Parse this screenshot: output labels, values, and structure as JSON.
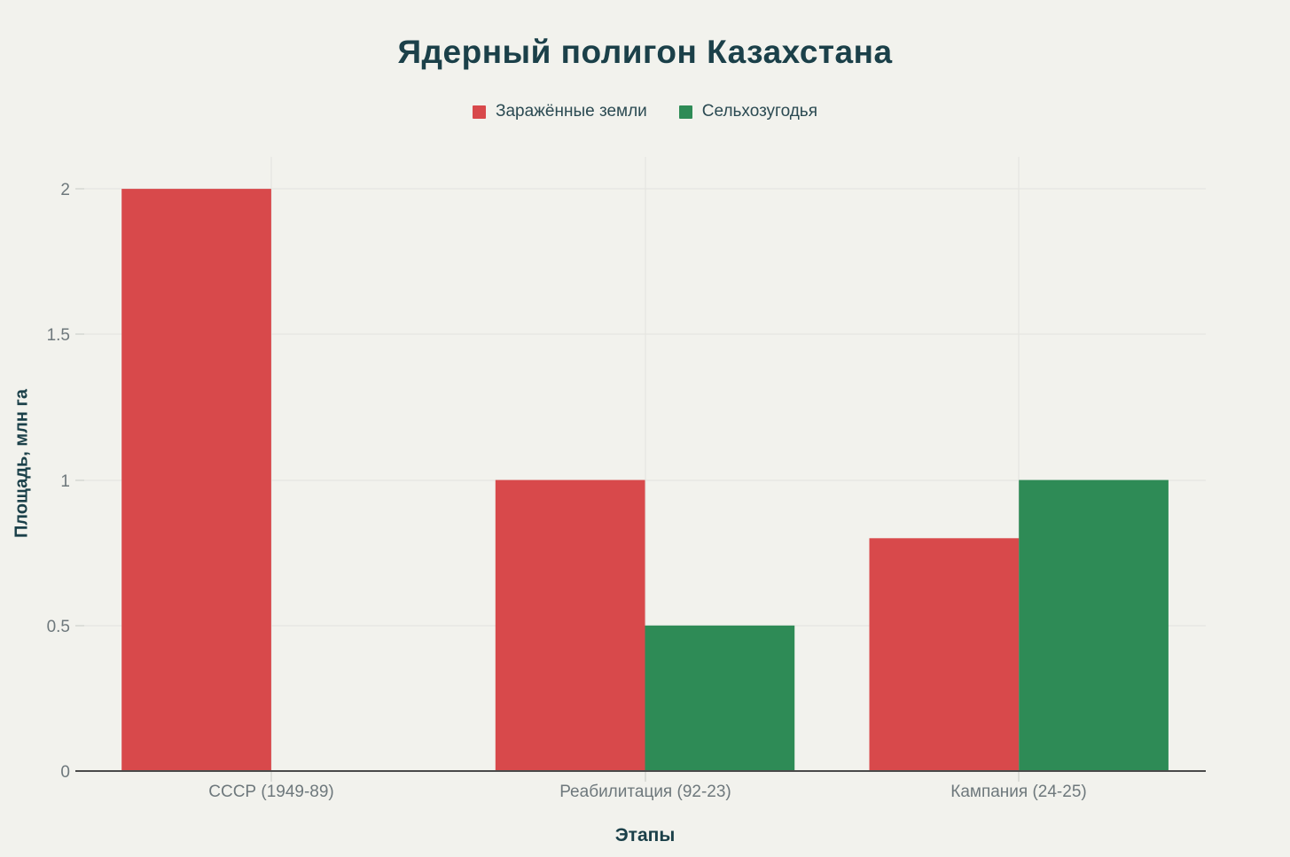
{
  "chart_data": {
    "type": "bar",
    "title": "Ядерный полигон Казахстана",
    "xlabel": "Этапы",
    "ylabel": "Площадь, млн га",
    "categories": [
      "СССР (1949-89)",
      "Реабилитация (92-23)",
      "Кампания (24-25)"
    ],
    "series": [
      {
        "name": "Заражённые земли",
        "color": "#d8494b",
        "values": [
          2,
          1,
          0.8
        ]
      },
      {
        "name": "Сельхозугодья",
        "color": "#2e8b56",
        "values": [
          0,
          0.5,
          1
        ]
      }
    ],
    "yticks": [
      0,
      0.5,
      1,
      1.5,
      2
    ],
    "ylim": [
      0,
      2.11
    ],
    "grid": true,
    "legend_position": "top"
  },
  "colors": {
    "background": "#f2f2ed",
    "heading": "#1b4049",
    "tick_text": "#6e787c",
    "grid": "#e3e3de",
    "axis": "#4a4a4a",
    "tick_mark": "#c7cac5",
    "series_red": "#d8494b",
    "series_green": "#2e8b56"
  }
}
